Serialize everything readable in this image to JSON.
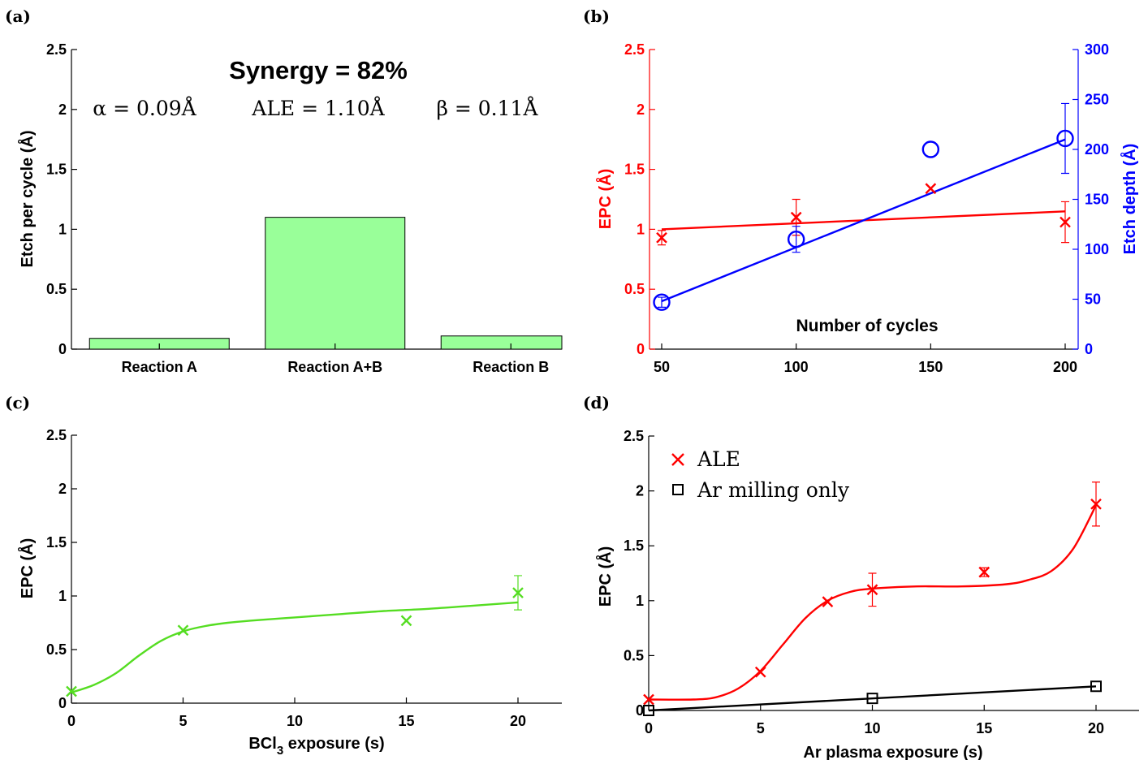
{
  "chart_data": [
    {
      "panel": "(a)",
      "type": "bar",
      "title": "Synergy = 82%",
      "annotations": [
        "α = 0.09Å",
        "ALE = 1.10Å",
        "β = 0.11Å"
      ],
      "categories": [
        "Reaction A",
        "Reaction A+B",
        "Reaction B"
      ],
      "values": [
        0.09,
        1.1,
        0.11
      ],
      "ylabel": "Etch per cycle (Å)",
      "ylim": [
        0,
        2.5
      ],
      "yticks": [
        "0",
        "0.5",
        "1",
        "1.5",
        "2",
        "2.5"
      ],
      "colors": {
        "bar": "#99ff99",
        "bar_edge": "#000000"
      }
    },
    {
      "panel": "(b)",
      "type": "scatter",
      "xlabel": "Number of cycles",
      "ylabel": "EPC (Å)",
      "y2label": "Etch depth (Å)",
      "xlim": [
        45,
        205
      ],
      "xticks": [
        "50",
        "100",
        "150",
        "200"
      ],
      "ylim": [
        0,
        2.5
      ],
      "yticks": [
        "0",
        "0.5",
        "1",
        "1.5",
        "2",
        "2.5"
      ],
      "y2lim": [
        0,
        300
      ],
      "y2ticks": [
        "0",
        "50",
        "100",
        "150",
        "200",
        "250",
        "300"
      ],
      "series": [
        {
          "axis": "left",
          "color": "#ff0000",
          "marker": "x",
          "points": [
            [
              50,
              0.93
            ],
            [
              100,
              1.1
            ],
            [
              150,
              1.34
            ],
            [
              200,
              1.06
            ]
          ],
          "errors": [
            0.06,
            0.15,
            0.0,
            0.17
          ],
          "fit": [
            [
              50,
              1.0
            ],
            [
              200,
              1.15
            ]
          ]
        },
        {
          "axis": "right",
          "color": "#0000ff",
          "marker": "o",
          "points": [
            [
              50,
              47
            ],
            [
              100,
              110
            ],
            [
              150,
              200
            ],
            [
              200,
              211
            ]
          ],
          "errors": [
            5,
            13,
            0,
            35
          ],
          "fit": [
            [
              50,
              48
            ],
            [
              200,
              210
            ]
          ]
        }
      ]
    },
    {
      "panel": "(c)",
      "type": "scatter",
      "xlabel": "BCl",
      "xlabel_sub": "3",
      "xlabel_tail": " exposure (s)",
      "ylabel": "EPC (Å)",
      "xlim": [
        0,
        22
      ],
      "xticks": [
        "0",
        "5",
        "10",
        "15",
        "20"
      ],
      "ylim": [
        0,
        2.5
      ],
      "yticks": [
        "0",
        "0.5",
        "1",
        "1.5",
        "2",
        "2.5"
      ],
      "series": [
        {
          "color": "#55dd22",
          "marker": "x",
          "points": [
            [
              0,
              0.11
            ],
            [
              5,
              0.68
            ],
            [
              15,
              0.77
            ],
            [
              20,
              1.03
            ]
          ],
          "errors": [
            0,
            0,
            0,
            0.16
          ],
          "fit": [
            [
              0,
              0.1
            ],
            [
              1,
              0.17
            ],
            [
              2,
              0.28
            ],
            [
              3,
              0.44
            ],
            [
              4,
              0.58
            ],
            [
              5,
              0.67
            ],
            [
              6,
              0.72
            ],
            [
              7,
              0.75
            ],
            [
              8,
              0.77
            ],
            [
              10,
              0.8
            ],
            [
              12,
              0.83
            ],
            [
              14,
              0.86
            ],
            [
              16,
              0.88
            ],
            [
              18,
              0.91
            ],
            [
              20,
              0.94
            ]
          ]
        }
      ]
    },
    {
      "panel": "(d)",
      "type": "scatter",
      "xlabel": "Ar plasma exposure (s)",
      "ylabel": "EPC (Å)",
      "xlim": [
        0,
        22
      ],
      "xticks": [
        "0",
        "5",
        "10",
        "15",
        "20"
      ],
      "ylim": [
        0,
        2.5
      ],
      "yticks": [
        "0",
        "0.5",
        "1",
        "1.5",
        "2",
        "2.5"
      ],
      "legend": "top-left",
      "series": [
        {
          "name": "ALE",
          "color": "#ff0000",
          "marker": "x",
          "points": [
            [
              0,
              0.1
            ],
            [
              5,
              0.35
            ],
            [
              8,
              0.99
            ],
            [
              10,
              1.1
            ],
            [
              15,
              1.26
            ],
            [
              20,
              1.88
            ]
          ],
          "errors": [
            0,
            0,
            0,
            0.15,
            0.04,
            0.2
          ],
          "fit": [
            [
              0,
              0.1
            ],
            [
              2,
              0.1
            ],
            [
              3,
              0.12
            ],
            [
              4,
              0.2
            ],
            [
              5,
              0.36
            ],
            [
              6,
              0.6
            ],
            [
              7,
              0.84
            ],
            [
              8,
              1.0
            ],
            [
              9,
              1.08
            ],
            [
              10,
              1.11
            ],
            [
              12,
              1.13
            ],
            [
              14,
              1.13
            ],
            [
              16,
              1.15
            ],
            [
              17,
              1.19
            ],
            [
              18,
              1.27
            ],
            [
              19,
              1.48
            ],
            [
              20,
              1.87
            ]
          ]
        },
        {
          "name": "Ar milling only",
          "color": "#000000",
          "marker": "s",
          "points": [
            [
              0,
              0.0
            ],
            [
              10,
              0.11
            ],
            [
              20,
              0.22
            ]
          ],
          "errors": [
            0,
            0,
            0
          ],
          "fit": [
            [
              0,
              0.0
            ],
            [
              20,
              0.22
            ]
          ]
        }
      ]
    }
  ]
}
